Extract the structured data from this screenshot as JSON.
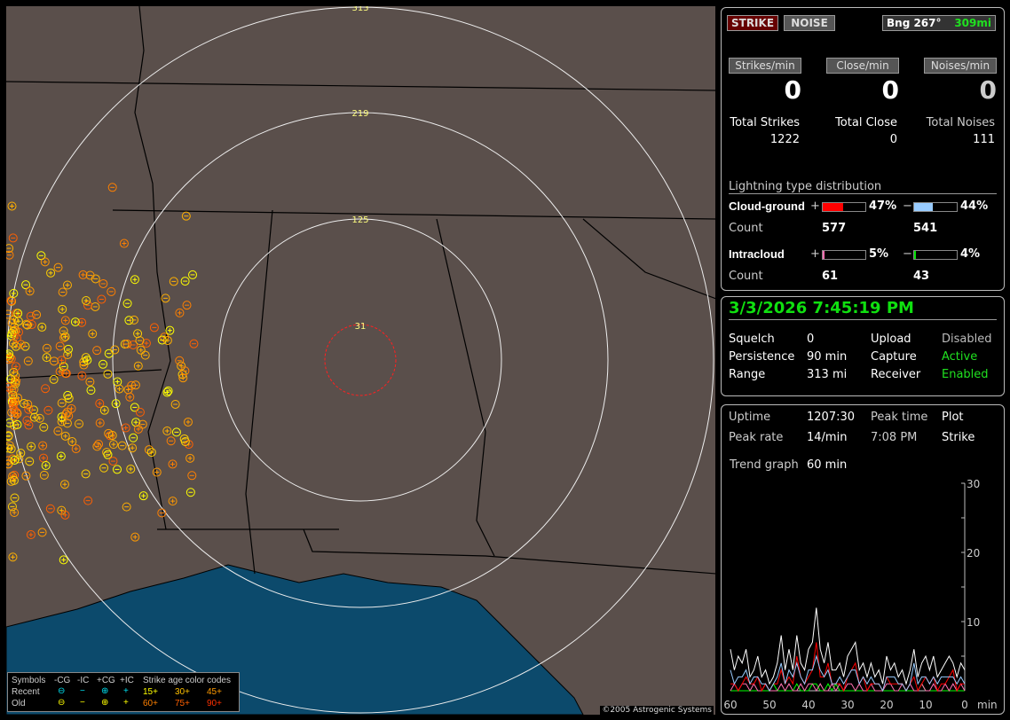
{
  "map": {
    "range_labels": [
      "313",
      "219",
      "125",
      "31"
    ],
    "copyright": "©2005 Astrogenic Systems",
    "colors": {
      "land": "#5a4f4b",
      "water": "#0c4a6c",
      "range_ring": "#dddddd",
      "close_ring": "#ff2020"
    },
    "legend": {
      "headers": [
        "Symbols",
        "-CG",
        "-IC",
        "+CG",
        "+IC",
        "Strike age color codes"
      ],
      "rows": [
        {
          "label": "Recent",
          "symbols": [
            "⊖",
            "−",
            "⊕",
            "+"
          ],
          "color": "#00e0f0",
          "ages": [
            "15+",
            "30+",
            "45+"
          ],
          "age_colors": [
            "#ffff00",
            "#ffc000",
            "#ff9a00"
          ]
        },
        {
          "label": "Old",
          "symbols": [
            "⊖",
            "−",
            "⊕",
            "+"
          ],
          "color": "#ffff00",
          "ages": [
            "60+",
            "75+",
            "90+"
          ],
          "age_colors": [
            "#ff8000",
            "#ff6000",
            "#ff3000"
          ]
        }
      ]
    }
  },
  "top": {
    "strike_btn": "STRIKE",
    "noise_btn": "NOISE",
    "bearing": "Bng 267°",
    "distance": "309mi",
    "rates": [
      {
        "label": "Strikes/min",
        "value": "0"
      },
      {
        "label": "Close/min",
        "value": "0"
      },
      {
        "label": "Noises/min",
        "value": "0"
      }
    ],
    "totals": [
      {
        "label": "Total Strikes",
        "value": "1222"
      },
      {
        "label": "Total Close",
        "value": "0"
      },
      {
        "label": "Total Noises",
        "value": "111"
      }
    ],
    "dist_title": "Lightning type distribution",
    "cg": {
      "label": "Cloud-ground",
      "plus": "+",
      "minus": "−",
      "plus_pct": "47%",
      "minus_pct": "44%",
      "plus_fill": 47,
      "minus_fill": 44,
      "count_label": "Count",
      "plus_count": "577",
      "minus_count": "541"
    },
    "ic": {
      "label": "Intracloud",
      "plus": "+",
      "minus": "−",
      "plus_pct": "5%",
      "minus_pct": "4%",
      "plus_fill": 5,
      "minus_fill": 4,
      "count_label": "Count",
      "plus_count": "61",
      "minus_count": "43"
    }
  },
  "status": {
    "datetime": "3/3/2026 7:45:19 PM",
    "rows": [
      [
        "Squelch",
        "0",
        "Upload",
        "Disabled"
      ],
      [
        "Persistence",
        "90 min",
        "Capture",
        "Active"
      ],
      [
        "Range",
        "313 mi",
        "Receiver",
        "Enabled"
      ]
    ]
  },
  "stats": {
    "rows": [
      [
        "Uptime",
        "1207:30",
        "Peak time",
        "Plot"
      ],
      [
        "Peak rate",
        "14/min",
        "7:08 PM",
        "Strike"
      ]
    ],
    "trend_label": "Trend graph",
    "trend_value": "60 min"
  },
  "chart_data": {
    "type": "line",
    "x_ticks": [
      "60",
      "50",
      "40",
      "30",
      "20",
      "10",
      "0"
    ],
    "xunit": "min",
    "y_ticks": [
      "30",
      "20",
      "10"
    ],
    "ylim": [
      0,
      30
    ],
    "xlim": [
      60,
      0
    ],
    "series": [
      {
        "color": "#ffffff",
        "values": [
          6,
          3,
          5,
          4,
          6,
          2,
          3,
          5,
          2,
          3,
          1,
          2,
          4,
          8,
          3,
          6,
          3,
          8,
          4,
          3,
          6,
          7,
          12,
          6,
          4,
          7,
          3,
          3,
          4,
          2,
          5,
          6,
          7,
          3,
          4,
          2,
          4,
          2,
          3,
          1,
          5,
          3,
          4,
          2,
          3,
          1,
          3,
          6,
          2,
          4,
          5,
          3,
          5,
          2,
          3,
          4,
          5,
          4,
          2,
          4,
          3
        ]
      },
      {
        "color": "#99ccff",
        "values": [
          3,
          1,
          2,
          2,
          3,
          1,
          2,
          2,
          1,
          1,
          0,
          1,
          2,
          4,
          1,
          3,
          2,
          4,
          2,
          1,
          3,
          3,
          5,
          3,
          2,
          3,
          1,
          1,
          2,
          1,
          2,
          3,
          3,
          1,
          2,
          1,
          2,
          1,
          1,
          0,
          2,
          2,
          2,
          1,
          1,
          0,
          1,
          4,
          1,
          2,
          2,
          1,
          2,
          1,
          2,
          2,
          2,
          2,
          1,
          2,
          1
        ]
      },
      {
        "color": "#ff0000",
        "values": [
          1,
          1,
          0,
          1,
          2,
          1,
          1,
          2,
          0,
          1,
          0,
          1,
          1,
          3,
          1,
          2,
          1,
          5,
          2,
          1,
          2,
          3,
          7,
          2,
          2,
          4,
          1,
          1,
          1,
          0,
          2,
          3,
          4,
          1,
          2,
          0,
          1,
          1,
          1,
          0,
          2,
          1,
          1,
          1,
          1,
          0,
          1,
          2,
          0,
          1,
          2,
          1,
          2,
          0,
          1,
          1,
          2,
          3,
          0,
          1,
          1
        ]
      },
      {
        "color": "#ff70b0",
        "values": [
          0,
          1,
          0,
          1,
          1,
          0,
          1,
          0,
          0,
          1,
          0,
          0,
          0,
          1,
          0,
          1,
          0,
          0,
          1,
          0,
          1,
          1,
          0,
          1,
          0,
          0,
          1,
          0,
          1,
          0,
          1,
          1,
          0,
          1,
          0,
          0,
          1,
          0,
          0,
          0,
          1,
          1,
          0,
          0,
          1,
          0,
          1,
          0,
          0,
          1,
          0,
          0,
          1,
          0,
          0,
          1,
          0,
          1,
          0,
          1,
          0
        ]
      },
      {
        "color": "#00ff00",
        "values": [
          0,
          0,
          0,
          0,
          0,
          0,
          0,
          0,
          0,
          0,
          0,
          1,
          0,
          0,
          0,
          0,
          0,
          1,
          0,
          0,
          0,
          1,
          1,
          0,
          0,
          1,
          0,
          1,
          0,
          0,
          0,
          0,
          0,
          0,
          0,
          0,
          0,
          0,
          0,
          0,
          0,
          0,
          0,
          0,
          0,
          0,
          0,
          0,
          0,
          1,
          0,
          0,
          0,
          0,
          0,
          0,
          0,
          0,
          0,
          0,
          0
        ]
      }
    ]
  }
}
